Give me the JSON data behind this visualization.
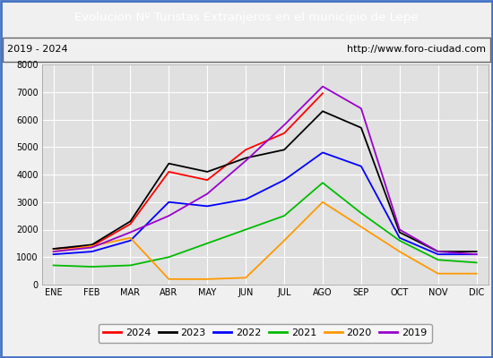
{
  "title": "Evolucion Nº Turistas Extranjeros en el municipio de Lepe",
  "subtitle_left": "2019 - 2024",
  "subtitle_right": "http://www.foro-ciudad.com",
  "title_bg_color": "#4472c4",
  "title_text_color": "#ffffff",
  "plot_bg_color": "#e0e0e0",
  "fig_bg_color": "#f0f0f0",
  "months": [
    "ENE",
    "FEB",
    "MAR",
    "ABR",
    "MAY",
    "JUN",
    "JUL",
    "AGO",
    "SEP",
    "OCT",
    "NOV",
    "DIC"
  ],
  "ylim": [
    0,
    8000
  ],
  "yticks": [
    0,
    1000,
    2000,
    3000,
    4000,
    5000,
    6000,
    7000,
    8000
  ],
  "series": {
    "2024": {
      "color": "#ff0000",
      "data": [
        1300,
        1400,
        2200,
        4100,
        3800,
        4900,
        5500,
        6950,
        null,
        null,
        null,
        null
      ]
    },
    "2023": {
      "color": "#000000",
      "data": [
        1300,
        1450,
        2300,
        4400,
        4100,
        4600,
        4900,
        6300,
        5700,
        1900,
        1200,
        1200
      ]
    },
    "2022": {
      "color": "#0000ff",
      "data": [
        1100,
        1200,
        1600,
        3000,
        2850,
        3100,
        3800,
        4800,
        4300,
        1700,
        1100,
        1100
      ]
    },
    "2021": {
      "color": "#00bb00",
      "data": [
        700,
        650,
        700,
        1000,
        1500,
        2000,
        2500,
        3700,
        2600,
        1600,
        900,
        800
      ]
    },
    "2020": {
      "color": "#ff9900",
      "data": [
        1200,
        1400,
        1700,
        200,
        200,
        250,
        1600,
        3000,
        2100,
        1200,
        400,
        400
      ]
    },
    "2019": {
      "color": "#9900cc",
      "data": [
        1200,
        1350,
        1900,
        2500,
        3300,
        4500,
        5800,
        7200,
        6400,
        2000,
        1200,
        1100
      ]
    }
  },
  "legend_order": [
    "2024",
    "2023",
    "2022",
    "2021",
    "2020",
    "2019"
  ],
  "grid_color": "#ffffff",
  "border_color": "#4472c4"
}
